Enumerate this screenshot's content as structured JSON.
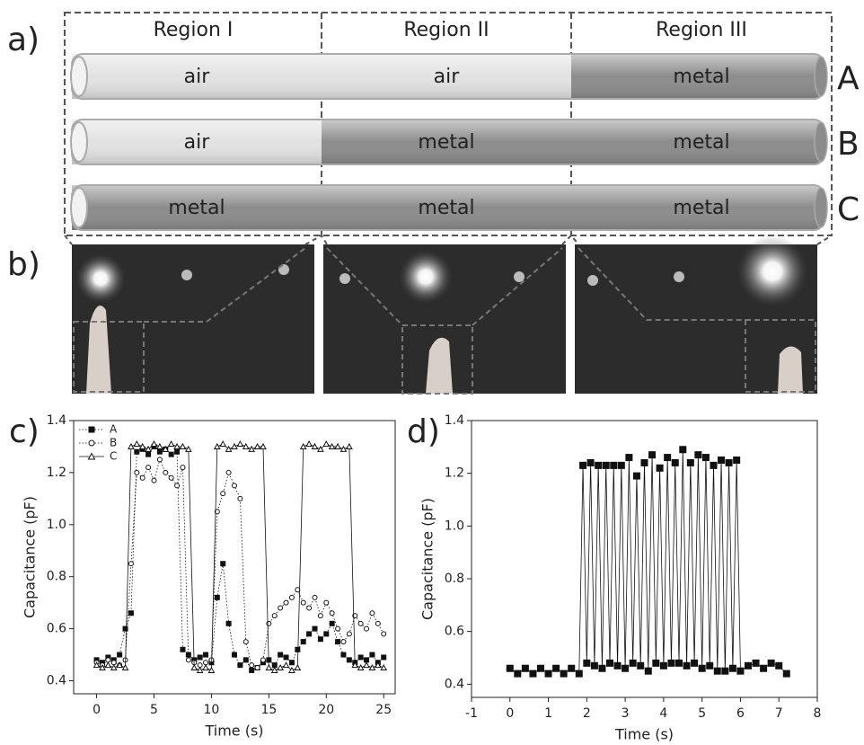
{
  "figure": {
    "a": {
      "label": "a)",
      "regions": [
        "Region I",
        "Region II",
        "Region III"
      ],
      "rows": [
        {
          "label": "A",
          "cells": [
            {
              "text": "air",
              "color": "#e2e2e2"
            },
            {
              "text": "air",
              "color": "#e2e2e2"
            },
            {
              "text": "metal",
              "color": "#8c8c8c"
            }
          ]
        },
        {
          "label": "B",
          "cells": [
            {
              "text": "air",
              "color": "#e2e2e2"
            },
            {
              "text": "metal",
              "color": "#8c8c8c"
            },
            {
              "text": "metal",
              "color": "#8c8c8c"
            }
          ]
        },
        {
          "label": "C",
          "cells": [
            {
              "text": "metal",
              "color": "#8c8c8c"
            },
            {
              "text": "metal",
              "color": "#8c8c8c"
            },
            {
              "text": "metal",
              "color": "#8c8c8c"
            }
          ]
        }
      ]
    },
    "b": {
      "label": "b)"
    }
  },
  "chart_data": [
    {
      "type": "scatter",
      "panel_label": "c)",
      "x_label": "Time (s)",
      "y_label": "Capacitance (pF)",
      "xlim": [
        -2,
        26
      ],
      "xticks": [
        0,
        5,
        10,
        15,
        20,
        25
      ],
      "ylim": [
        0.35,
        1.4
      ],
      "yticks": [
        0.4,
        0.6,
        0.8,
        {
          "value": 1,
          "label": "1.0"
        },
        1.2,
        1.4
      ],
      "legend": "top-left",
      "x": [
        0,
        0.5,
        1,
        1.5,
        2,
        2.5,
        3,
        3.5,
        4,
        4.5,
        5,
        5.5,
        6,
        6.5,
        7,
        7.5,
        8,
        8.5,
        9,
        9.5,
        10,
        10.5,
        11,
        11.5,
        12,
        12.5,
        13,
        13.5,
        14,
        14.5,
        15,
        15.5,
        16,
        16.5,
        17,
        17.5,
        18,
        18.5,
        19,
        19.5,
        20,
        20.5,
        21,
        21.5,
        22,
        22.5,
        23,
        23.5,
        24,
        24.5,
        25
      ],
      "series": [
        {
          "name": "A",
          "color": "#111111",
          "marker": "square",
          "line_style": "dotted",
          "values": [
            0.48,
            0.47,
            0.49,
            0.48,
            0.5,
            0.6,
            0.66,
            1.28,
            1.29,
            1.27,
            1.3,
            1.28,
            1.29,
            1.27,
            1.28,
            0.52,
            0.5,
            0.48,
            0.49,
            0.5,
            0.47,
            0.72,
            0.85,
            0.62,
            0.5,
            0.46,
            0.48,
            0.44,
            0.45,
            0.47,
            0.48,
            0.46,
            0.5,
            0.49,
            0.47,
            0.52,
            0.55,
            0.58,
            0.6,
            0.56,
            0.58,
            0.62,
            0.55,
            0.5,
            0.48,
            0.47,
            0.49,
            0.48,
            0.5,
            0.47,
            0.49
          ]
        },
        {
          "name": "B",
          "color": "#111111",
          "marker": "circle-open",
          "line_style": "dotted",
          "values": [
            0.47,
            0.46,
            0.48,
            0.47,
            0.46,
            0.48,
            0.85,
            1.2,
            1.18,
            1.22,
            1.17,
            1.25,
            1.2,
            1.18,
            1.15,
            1.22,
            0.48,
            0.47,
            0.46,
            0.47,
            0.48,
            1.05,
            1.12,
            1.2,
            1.15,
            1.1,
            0.55,
            0.46,
            0.45,
            0.48,
            0.62,
            0.65,
            0.68,
            0.7,
            0.72,
            0.75,
            0.7,
            0.68,
            0.72,
            0.65,
            0.7,
            0.66,
            0.6,
            0.55,
            0.58,
            0.65,
            0.62,
            0.6,
            0.66,
            0.62,
            0.58
          ]
        },
        {
          "name": "C",
          "color": "#111111",
          "marker": "triangle-open",
          "line_style": "solid",
          "values": [
            0.46,
            0.45,
            0.46,
            0.45,
            0.46,
            0.45,
            1.3,
            1.31,
            1.3,
            1.29,
            1.31,
            1.3,
            1.29,
            1.31,
            1.3,
            1.3,
            1.29,
            0.45,
            0.44,
            0.45,
            0.44,
            1.3,
            1.31,
            1.29,
            1.3,
            1.31,
            1.3,
            1.29,
            1.3,
            1.3,
            0.45,
            0.44,
            0.45,
            0.46,
            0.44,
            0.45,
            1.3,
            1.31,
            1.3,
            1.29,
            1.31,
            1.3,
            1.3,
            1.29,
            1.3,
            0.46,
            0.45,
            0.46,
            0.45,
            0.46,
            0.45
          ]
        }
      ]
    },
    {
      "type": "scatter",
      "panel_label": "d)",
      "x_label": "Time (s)",
      "y_label": "Capacitance (pF)",
      "xlim": [
        -1,
        8
      ],
      "xticks": [
        -1,
        0,
        1,
        2,
        3,
        4,
        5,
        6,
        7,
        8
      ],
      "ylim": [
        0.35,
        1.4
      ],
      "yticks": [
        0.4,
        0.6,
        0.8,
        {
          "value": 1,
          "label": "1.0"
        },
        1.2,
        1.4
      ],
      "x": [
        0,
        0.2,
        0.4,
        0.6,
        0.8,
        1,
        1.2,
        1.4,
        1.6,
        1.8,
        1.9,
        2,
        2.1,
        2.2,
        2.3,
        2.4,
        2.5,
        2.6,
        2.7,
        2.8,
        2.9,
        3,
        3.1,
        3.2,
        3.3,
        3.4,
        3.5,
        3.6,
        3.7,
        3.8,
        3.9,
        4,
        4.1,
        4.2,
        4.3,
        4.4,
        4.5,
        4.6,
        4.7,
        4.8,
        4.9,
        5,
        5.1,
        5.2,
        5.3,
        5.4,
        5.5,
        5.6,
        5.7,
        5.8,
        5.9,
        6,
        6.2,
        6.4,
        6.6,
        6.8,
        7,
        7.2
      ],
      "series": [
        {
          "color": "#111111",
          "marker": "square",
          "line_style": "solid",
          "values": [
            0.46,
            0.44,
            0.46,
            0.44,
            0.46,
            0.44,
            0.46,
            0.44,
            0.46,
            0.44,
            1.23,
            0.48,
            1.24,
            0.47,
            1.23,
            0.46,
            1.23,
            0.48,
            1.23,
            0.47,
            1.23,
            0.46,
            1.26,
            0.48,
            1.19,
            0.47,
            1.24,
            0.45,
            1.27,
            0.48,
            1.22,
            0.47,
            1.26,
            0.48,
            1.24,
            0.48,
            1.29,
            0.47,
            1.24,
            0.48,
            1.27,
            0.46,
            1.26,
            0.47,
            1.23,
            0.45,
            1.25,
            0.45,
            1.24,
            0.46,
            1.25,
            0.45,
            0.47,
            0.48,
            0.46,
            0.48,
            0.47,
            0.44
          ]
        }
      ]
    }
  ]
}
